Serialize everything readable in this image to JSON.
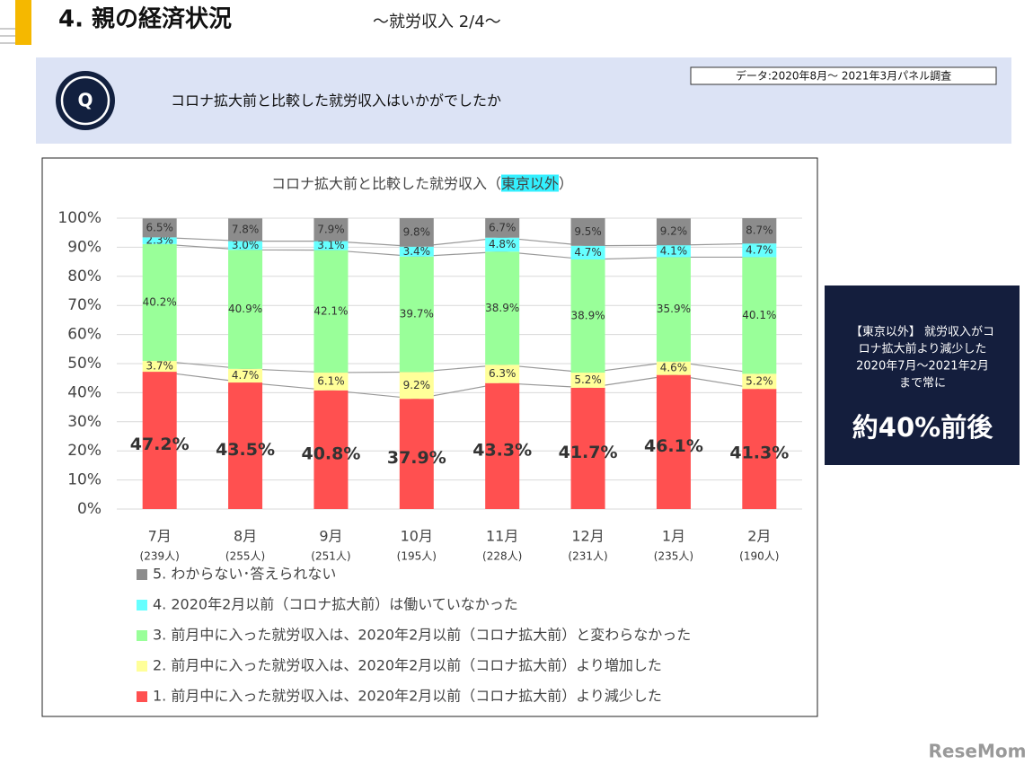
{
  "header": {
    "title": "4. 親の経済状況",
    "subtitle": "～就労収入 2/4～"
  },
  "question": {
    "badge": "Q",
    "text": "コロナ拡大前と比較した就労収入はいかがでしたか",
    "source": "データ:2020年8月～ 2021年3月パネル調査"
  },
  "callout": {
    "lines": [
      "【東京以外】 就労収入がコ",
      "ロナ拡大前より減少した",
      "2020年7月～2021年2月",
      "まで常に"
    ],
    "emphasis": "約40%前後"
  },
  "watermark": "ReseMom",
  "chart_data": {
    "type": "stacked_bar",
    "title_parts": [
      {
        "text": "コロナ拡大前と比較した就労収入（"
      },
      {
        "text": "東京以外",
        "highlight": "#33f0ff"
      },
      {
        "text": "）"
      }
    ],
    "categories": [
      "7月",
      "8月",
      "9月",
      "10月",
      "11月",
      "12月",
      "1月",
      "2月"
    ],
    "sample_sizes": [
      "(239人)",
      "(255人)",
      "(251人)",
      "(195人)",
      "(228人)",
      "(231人)",
      "(235人)",
      "(190人)"
    ],
    "ylim": [
      0,
      100
    ],
    "yticks": [
      {
        "value": 0,
        "label": "0%"
      },
      {
        "value": 10,
        "label": "10%"
      },
      {
        "value": 20,
        "label": "20%"
      },
      {
        "value": 30,
        "label": "30%"
      },
      {
        "value": 40,
        "label": "40%"
      },
      {
        "value": 50,
        "label": "50%"
      },
      {
        "value": 60,
        "label": "60%"
      },
      {
        "value": 70,
        "label": "70%"
      },
      {
        "value": 80,
        "label": "80%"
      },
      {
        "value": 90,
        "label": "90%"
      },
      {
        "value": 100,
        "label": "100%"
      }
    ],
    "grid": true,
    "legend": "bottom",
    "connector_lines": true,
    "series": [
      {
        "name": "1. 前月中に入った就労収入は、2020年2月以前（コロナ拡大前）より減少した",
        "color": "#ff5050",
        "values": [
          47.2,
          43.5,
          40.8,
          37.9,
          43.3,
          41.7,
          46.1,
          41.3
        ],
        "value_labels": [
          "47.2%",
          "43.5%",
          "40.8%",
          "37.9%",
          "43.3%",
          "41.7%",
          "46.1%",
          "41.3%"
        ]
      },
      {
        "name": "2. 前月中に入った就労収入は、2020年2月以前（コロナ拡大前）より増加した",
        "color": "#ffff99",
        "values": [
          3.7,
          4.7,
          6.1,
          9.2,
          6.3,
          5.2,
          4.6,
          5.2
        ],
        "value_labels": [
          "3.7%",
          "4.7%",
          "6.1%",
          "9.2%",
          "6.3%",
          "5.2%",
          "4.6%",
          "5.2%"
        ]
      },
      {
        "name": "3. 前月中に入った就労収入は、2020年2月以前（コロナ拡大前）と変わらなかった",
        "color": "#99ff99",
        "values": [
          40.2,
          40.9,
          42.1,
          39.7,
          38.9,
          38.9,
          35.9,
          40.1
        ],
        "value_labels": [
          "40.2%",
          "40.9%",
          "42.1%",
          "39.7%",
          "38.9%",
          "38.9%",
          "35.9%",
          "40.1%"
        ]
      },
      {
        "name": "4. 2020年2月以前（コロナ拡大前）は働いていなかった",
        "color": "#66ffff",
        "values": [
          2.3,
          3.0,
          3.1,
          3.4,
          4.8,
          4.7,
          4.1,
          4.7
        ],
        "value_labels": [
          "2.3%",
          "3.0%",
          "3.1%",
          "3.4%",
          "4.8%",
          "4.7%",
          "4.1%",
          "4.7%"
        ]
      },
      {
        "name": "5. わからない･答えられない",
        "color": "#8c8c8c",
        "values": [
          6.5,
          7.8,
          7.9,
          9.8,
          6.7,
          9.5,
          9.2,
          8.7
        ],
        "value_labels": [
          "6.5%",
          "7.8%",
          "7.9%",
          "9.8%",
          "6.7%",
          "9.5%",
          "9.2%",
          "8.7%"
        ]
      }
    ]
  }
}
